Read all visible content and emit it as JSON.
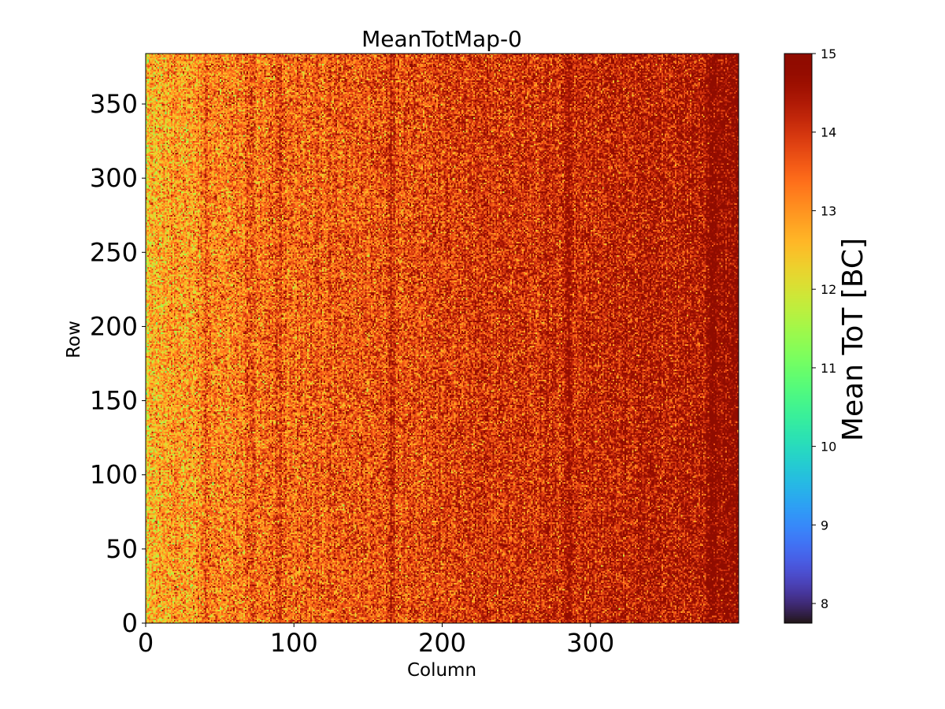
{
  "chart_data": {
    "type": "heatmap",
    "title": "MeanTotMap-0",
    "xlabel": "Column",
    "ylabel": "Row",
    "xlim": [
      0,
      400
    ],
    "ylim": [
      0,
      384
    ],
    "grid": false,
    "colormap": "turbo",
    "x_ticks": [
      "0",
      "100",
      "200",
      "300"
    ],
    "y_ticks": [
      "0",
      "50",
      "100",
      "150",
      "200",
      "250",
      "300",
      "350"
    ],
    "colorbar": {
      "label": "Mean ToT [BC]",
      "range": [
        7.75,
        15
      ],
      "ticks": [
        "8",
        "9",
        "10",
        "11",
        "12",
        "13",
        "14",
        "15"
      ]
    },
    "summary": {
      "typical_value_left_columns": 12.5,
      "typical_value_right_columns": 14.5,
      "dark_stripe_columns": [
        40,
        70,
        90,
        165,
        285,
        380
      ],
      "cell_noise_std": 0.9
    }
  },
  "colors": {
    "background": "#ffffff",
    "axes": "#000000"
  }
}
